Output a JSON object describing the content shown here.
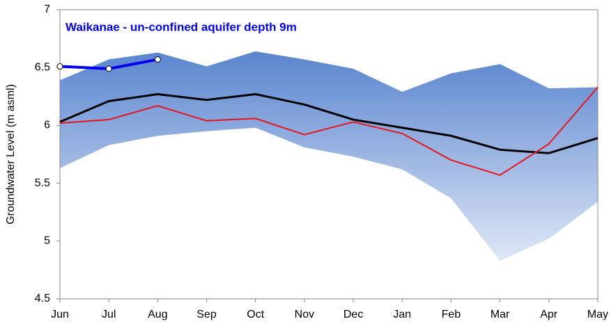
{
  "chart_data": {
    "type": "line",
    "title": "Waikanae - un-confined aquifer depth 9m",
    "title_color": "#0000ff",
    "ylabel": "Groundwater Level (m asml)",
    "categories": [
      "Jun",
      "Jul",
      "Aug",
      "Sep",
      "Oct",
      "Nov",
      "Dec",
      "Jan",
      "Feb",
      "Mar",
      "Apr",
      "May"
    ],
    "band": {
      "upper": [
        6.39,
        6.57,
        6.63,
        6.51,
        6.64,
        6.57,
        6.49,
        6.29,
        6.45,
        6.53,
        6.32,
        6.33
      ],
      "lower": [
        5.63,
        5.83,
        5.91,
        5.95,
        5.98,
        5.81,
        5.73,
        5.62,
        5.37,
        4.83,
        5.02,
        5.34
      ],
      "colors": [
        "#5a85cf",
        "#dfe7f6"
      ]
    },
    "series": [
      {
        "color": "#000000",
        "width": 3,
        "markers": false,
        "values": [
          6.03,
          6.21,
          6.27,
          6.22,
          6.27,
          6.18,
          6.05,
          5.98,
          5.91,
          5.79,
          5.76,
          5.89
        ]
      },
      {
        "color": "#e8141c",
        "width": 2,
        "markers": false,
        "values": [
          6.02,
          6.05,
          6.17,
          6.04,
          6.06,
          5.92,
          6.03,
          5.93,
          5.7,
          5.57,
          5.84,
          6.33
        ]
      },
      {
        "color": "#0000ee",
        "width": 4,
        "markers": true,
        "values": [
          6.51,
          6.49,
          6.57,
          null,
          null,
          null,
          null,
          null,
          null,
          null,
          null,
          null
        ]
      }
    ],
    "ylim": [
      4.5,
      7
    ],
    "yticks": [
      4.5,
      5,
      5.5,
      6,
      6.5,
      7
    ],
    "grid": false
  }
}
